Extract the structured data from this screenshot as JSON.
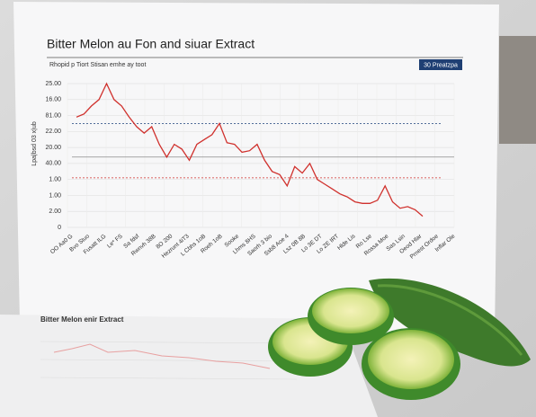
{
  "chart_data": {
    "type": "line",
    "title": "Bitter Melon au Fon and siuar Extract",
    "subtitle": "Rhopid p Tiort Stisan emhe ay toot",
    "badge": "30 Preatzpa",
    "y_label": "Lpa|bsd 03 x|ub",
    "color": "#d0312d",
    "grid": true,
    "ylim": [
      0,
      9
    ],
    "yticks": [
      {
        "value": 0,
        "label": "0"
      },
      {
        "value": 1,
        "label": "2.00"
      },
      {
        "value": 2,
        "label": "1.00"
      },
      {
        "value": 3,
        "label": "1.00"
      },
      {
        "value": 4,
        "label": "40.00"
      },
      {
        "value": 5,
        "label": "20.00"
      },
      {
        "value": 6,
        "label": "22.00"
      },
      {
        "value": 7,
        "label": "81.00"
      },
      {
        "value": 8,
        "label": "16.00"
      },
      {
        "value": 9,
        "label": "25.00"
      }
    ],
    "values": [
      6.9,
      7.1,
      7.6,
      8.0,
      9.0,
      8.0,
      7.6,
      6.9,
      6.3,
      5.9,
      6.3,
      5.2,
      4.4,
      5.2,
      4.9,
      4.2,
      5.2,
      5.5,
      5.8,
      6.5,
      5.3,
      5.2,
      4.7,
      4.8,
      5.2,
      4.2,
      3.5,
      3.3,
      2.6,
      3.8,
      3.4,
      4.0,
      3.0,
      2.7,
      2.4,
      2.1,
      1.9,
      1.6,
      1.5,
      1.5,
      1.7,
      2.6,
      1.6,
      1.2,
      1.3,
      1.1,
      0.7
    ],
    "reference_lines": [
      {
        "value": 6.5,
        "color": "#3b5b8c",
        "dashed": true
      },
      {
        "value": 4.4,
        "color": "#8a8a8a",
        "dashed": false
      },
      {
        "value": 3.1,
        "color": "#d0312d",
        "dashed": true
      }
    ],
    "x_tick_labels": [
      "OO Aa0 G",
      "Bvo Stuo",
      "Fusatt ILG",
      "Le* FS",
      "Sa fdsf",
      "Rwnvh 38B",
      "8O 200",
      "Hezrunt 4iT3",
      "L Cbhs 1oB",
      "Roeh 1oB",
      "Sooke",
      "Lhms 8HS",
      "Saorh 3 bio",
      "Ssb8 Aoe 4",
      "Lsz 0B 8B",
      "Lo 3E DT",
      "Lo ZE IRT",
      "Hlde Lis",
      "Ro Lse",
      "Rossa Moe",
      "Sas Lsin",
      "Oeod Hlar",
      "Prnest Ordoe",
      "Inflar Ole"
    ],
    "bottom_sheet": {
      "title": "Bitter Melon  enir Extract"
    }
  }
}
